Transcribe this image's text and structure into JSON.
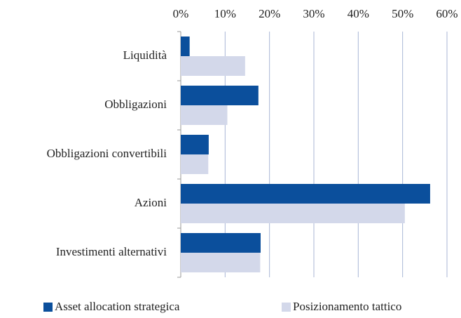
{
  "chart_data": {
    "type": "barh",
    "categories": [
      "Liquidità",
      "Obbligazioni",
      "Obbligazioni convertibili",
      "Azioni",
      "Investimenti alternativi"
    ],
    "series": [
      {
        "name": "Asset allocation strategica",
        "color": "#0b4f9c",
        "values": [
          2,
          17.5,
          6.3,
          56.2,
          18
        ]
      },
      {
        "name": "Posizionamento tattico",
        "color": "#d3d8ea",
        "values": [
          14.5,
          10.5,
          6.2,
          50.5,
          17.9
        ]
      }
    ],
    "xlim": [
      0,
      60
    ],
    "xticks": [
      {
        "value": 0,
        "label": "0%"
      },
      {
        "value": 10,
        "label": "10%"
      },
      {
        "value": 20,
        "label": "20%"
      },
      {
        "value": 30,
        "label": "30%"
      },
      {
        "value": 40,
        "label": "40%"
      },
      {
        "value": 50,
        "label": "50%"
      },
      {
        "value": 60,
        "label": "60%"
      }
    ],
    "grid": true
  }
}
